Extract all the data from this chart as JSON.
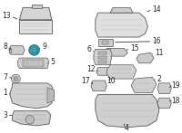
{
  "bg_color": "#ffffff",
  "line_color": "#444444",
  "label_color": "#222222",
  "highlight_color": "#3a9aaa",
  "font_size": 5.5,
  "line_width": 0.6,
  "part_fill": "#d8d8d8",
  "part_edge": "#555555",
  "leader_color": "#333333"
}
